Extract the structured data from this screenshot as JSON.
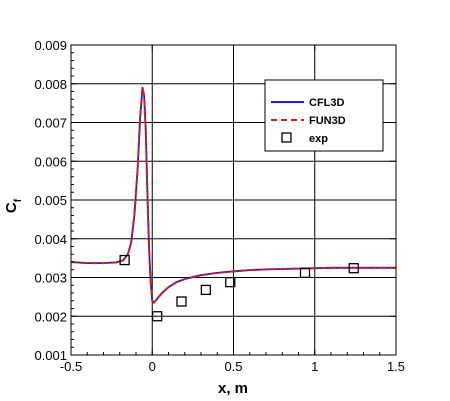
{
  "chart_data": {
    "type": "line",
    "xlabel": "x, m",
    "ylabel": "C",
    "ylabel_sub": "f",
    "xlim": [
      -0.5,
      1.5
    ],
    "ylim": [
      0.001,
      0.009
    ],
    "xticks": [
      -0.5,
      0,
      0.5,
      1,
      1.5
    ],
    "xtick_labels": [
      "-0.5",
      "0",
      "0.5",
      "1",
      "1.5"
    ],
    "yticks": [
      0.001,
      0.002,
      0.003,
      0.004,
      0.005,
      0.006,
      0.007,
      0.008,
      0.009
    ],
    "ytick_labels": [
      "0.001",
      "0.002",
      "0.003",
      "0.004",
      "0.005",
      "0.006",
      "0.007",
      "0.008",
      "0.009"
    ],
    "grid": true,
    "legend_position": "top-right",
    "series": [
      {
        "name": "CFL3D",
        "style": "solid",
        "color": "#1f1fcf",
        "x": [
          -0.5,
          -0.4,
          -0.3,
          -0.22,
          -0.18,
          -0.15,
          -0.13,
          -0.11,
          -0.09,
          -0.075,
          -0.06,
          -0.05,
          -0.04,
          -0.03,
          -0.02,
          -0.01,
          0.0,
          0.01,
          0.03,
          0.06,
          0.1,
          0.15,
          0.2,
          0.3,
          0.4,
          0.5,
          0.6,
          0.7,
          0.8,
          0.9,
          1.0,
          1.1,
          1.2,
          1.3,
          1.4,
          1.5
        ],
        "y": [
          0.0034,
          0.00337,
          0.00337,
          0.00339,
          0.00344,
          0.0036,
          0.0039,
          0.0046,
          0.0058,
          0.0071,
          0.0079,
          0.0077,
          0.0068,
          0.0052,
          0.0038,
          0.0029,
          0.0024,
          0.00235,
          0.00245,
          0.0026,
          0.00275,
          0.00288,
          0.00296,
          0.00306,
          0.00312,
          0.00316,
          0.00319,
          0.00321,
          0.00322,
          0.00323,
          0.00324,
          0.00325,
          0.00325,
          0.00325,
          0.00325,
          0.00325
        ]
      },
      {
        "name": "FUN3D",
        "style": "dashed",
        "color": "#d41c1c",
        "x": [
          -0.5,
          -0.4,
          -0.3,
          -0.22,
          -0.18,
          -0.15,
          -0.13,
          -0.11,
          -0.09,
          -0.075,
          -0.06,
          -0.05,
          -0.04,
          -0.03,
          -0.02,
          -0.01,
          0.0,
          0.01,
          0.03,
          0.06,
          0.1,
          0.15,
          0.2,
          0.3,
          0.4,
          0.5,
          0.6,
          0.7,
          0.8,
          0.9,
          1.0,
          1.1,
          1.2,
          1.3,
          1.4,
          1.5
        ],
        "y": [
          0.0034,
          0.00337,
          0.00337,
          0.00339,
          0.00344,
          0.0036,
          0.0039,
          0.0046,
          0.0058,
          0.0071,
          0.0079,
          0.0077,
          0.0068,
          0.0052,
          0.0038,
          0.0029,
          0.0024,
          0.00235,
          0.00245,
          0.0026,
          0.00275,
          0.00288,
          0.00296,
          0.00306,
          0.00312,
          0.00316,
          0.00319,
          0.00321,
          0.00322,
          0.00323,
          0.00324,
          0.00325,
          0.00325,
          0.00325,
          0.00325,
          0.00325
        ]
      },
      {
        "name": "exp",
        "style": "markers",
        "marker": "open-square",
        "color": "#000000",
        "x": [
          -0.17,
          0.03,
          0.18,
          0.33,
          0.48,
          0.94,
          1.24
        ],
        "y": [
          0.00345,
          0.002,
          0.00238,
          0.00268,
          0.00288,
          0.00312,
          0.00324
        ]
      }
    ]
  }
}
